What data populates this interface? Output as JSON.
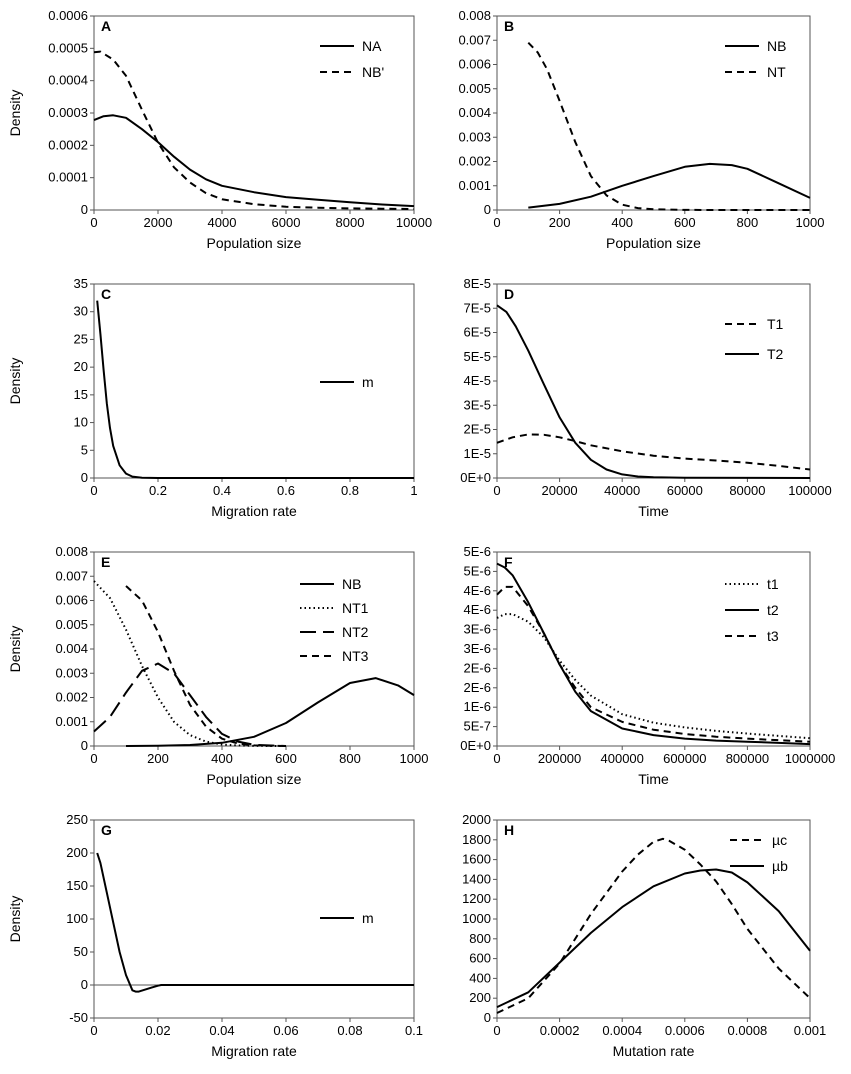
{
  "chart_data": [
    {
      "panel": "A",
      "type": "line",
      "title": "",
      "xlabel": "Population size",
      "ylabel": "Density",
      "xlim": [
        0,
        10000
      ],
      "ylim": [
        0,
        0.0006
      ],
      "xticks": [
        0,
        2000,
        4000,
        6000,
        8000,
        10000
      ],
      "xtick_labels": [
        "0",
        "2000",
        "4000",
        "6000",
        "8000",
        "10000"
      ],
      "yticks": [
        0,
        0.0001,
        0.0002,
        0.0003,
        0.0004,
        0.0005,
        0.0006
      ],
      "ytick_labels": [
        "0",
        "0.0001",
        "0.0002",
        "0.0003",
        "0.0004",
        "0.0005",
        "0.0006"
      ],
      "legend_position": "top-right",
      "series": [
        {
          "name": "NA",
          "style": "solid",
          "x": [
            0,
            300,
            600,
            1000,
            1500,
            2000,
            2500,
            3000,
            3500,
            4000,
            5000,
            6000,
            7000,
            8000,
            9000,
            10000
          ],
          "y": [
            0.000278,
            0.00029,
            0.000293,
            0.000285,
            0.00025,
            0.00021,
            0.000165,
            0.000125,
            9.5e-05,
            7.5e-05,
            5.5e-05,
            4e-05,
            3.2e-05,
            2.4e-05,
            1.7e-05,
            1.2e-05
          ]
        },
        {
          "name": "NB'",
          "style": "dashed",
          "x": [
            0,
            200,
            600,
            1000,
            1500,
            2000,
            2500,
            3000,
            3500,
            4000,
            5000,
            6000,
            7000,
            8000,
            9000,
            10000
          ],
          "y": [
            0.000488,
            0.00049,
            0.000465,
            0.000415,
            0.00031,
            0.000208,
            0.000132,
            8.5e-05,
            5.2e-05,
            3.3e-05,
            1.8e-05,
            1e-05,
            7e-06,
            5e-06,
            4e-06,
            3e-06
          ]
        }
      ]
    },
    {
      "panel": "B",
      "type": "line",
      "title": "",
      "xlabel": "Population size",
      "ylabel": "",
      "xlim": [
        0,
        1000
      ],
      "ylim": [
        0,
        0.008
      ],
      "xticks": [
        0,
        200,
        400,
        600,
        800,
        1000
      ],
      "xtick_labels": [
        "0",
        "200",
        "400",
        "600",
        "800",
        "1000"
      ],
      "yticks": [
        0,
        0.001,
        0.002,
        0.003,
        0.004,
        0.005,
        0.006,
        0.007,
        0.008
      ],
      "ytick_labels": [
        "0",
        "0.001",
        "0.002",
        "0.003",
        "0.004",
        "0.005",
        "0.006",
        "0.007",
        "0.008"
      ],
      "legend_position": "top-right",
      "series": [
        {
          "name": "NB",
          "style": "solid",
          "x": [
            100,
            200,
            300,
            400,
            500,
            600,
            680,
            750,
            800,
            900,
            1000
          ],
          "y": [
            0.0001,
            0.00025,
            0.00055,
            0.001,
            0.0014,
            0.00178,
            0.0019,
            0.00185,
            0.0017,
            0.0011,
            0.0005
          ]
        },
        {
          "name": "NT",
          "style": "dashed",
          "x": [
            100,
            130,
            160,
            200,
            250,
            300,
            350,
            400,
            450,
            500,
            600,
            700,
            800,
            1000
          ],
          "y": [
            0.0069,
            0.0065,
            0.0058,
            0.0045,
            0.0028,
            0.0014,
            0.0006,
            0.00022,
            8e-05,
            3e-05,
            5e-06,
            0,
            0,
            0
          ]
        }
      ]
    },
    {
      "panel": "C",
      "type": "line",
      "title": "",
      "xlabel": "Migration rate",
      "ylabel": "Density",
      "xlim": [
        0,
        1
      ],
      "ylim": [
        0,
        35
      ],
      "xticks": [
        0,
        0.2,
        0.4,
        0.6,
        0.8,
        1
      ],
      "xtick_labels": [
        "0",
        "0.2",
        "0.4",
        "0.6",
        "0.8",
        "1"
      ],
      "yticks": [
        0,
        5,
        10,
        15,
        20,
        25,
        30,
        35
      ],
      "ytick_labels": [
        "0",
        "5",
        "10",
        "15",
        "20",
        "25",
        "30",
        "35"
      ],
      "legend_position": "middle-right",
      "series": [
        {
          "name": "m",
          "style": "solid",
          "x": [
            0.01,
            0.02,
            0.03,
            0.04,
            0.05,
            0.06,
            0.08,
            0.1,
            0.12,
            0.15,
            0.2,
            0.3,
            0.5,
            1
          ],
          "y": [
            32,
            26,
            19.5,
            13.5,
            9,
            5.8,
            2.3,
            0.8,
            0.25,
            0.05,
            0,
            0,
            0,
            0
          ]
        }
      ]
    },
    {
      "panel": "D",
      "type": "line",
      "title": "",
      "xlabel": "Time",
      "ylabel": "",
      "xlim": [
        0,
        100000
      ],
      "ylim": [
        0,
        8e-05
      ],
      "xticks": [
        0,
        20000,
        40000,
        60000,
        80000,
        100000
      ],
      "xtick_labels": [
        "0",
        "20000",
        "40000",
        "60000",
        "80000",
        "100000"
      ],
      "yticks": [
        0,
        1e-05,
        2e-05,
        3e-05,
        4e-05,
        5e-05,
        6e-05,
        7e-05,
        8e-05
      ],
      "ytick_labels": [
        "0E+0",
        "1E-5",
        "2E-5",
        "3E-5",
        "4E-5",
        "5E-5",
        "6E-5",
        "7E-5",
        "8E-5"
      ],
      "legend_position": "top-right",
      "series": [
        {
          "name": "T1",
          "style": "dashed",
          "x": [
            0,
            5000,
            10000,
            15000,
            20000,
            25000,
            30000,
            40000,
            50000,
            60000,
            70000,
            80000,
            90000,
            100000
          ],
          "y": [
            1.45e-05,
            1.68e-05,
            1.8e-05,
            1.78e-05,
            1.68e-05,
            1.52e-05,
            1.35e-05,
            1.1e-05,
            9.2e-06,
            8e-06,
            7.2e-06,
            6.3e-06,
            5e-06,
            3.5e-06
          ]
        },
        {
          "name": "T2",
          "style": "solid",
          "x": [
            0,
            3000,
            6000,
            10000,
            15000,
            20000,
            25000,
            30000,
            35000,
            40000,
            45000,
            50000,
            60000,
            100000
          ],
          "y": [
            7.12e-05,
            6.85e-05,
            6.25e-05,
            5.25e-05,
            3.85e-05,
            2.5e-05,
            1.45e-05,
            7.5e-06,
            3.5e-06,
            1.5e-06,
            6e-07,
            3e-07,
            1e-07,
            0
          ]
        }
      ]
    },
    {
      "panel": "E",
      "type": "line",
      "title": "",
      "xlabel": "Population size",
      "ylabel": "Density",
      "xlim": [
        0,
        1000
      ],
      "ylim": [
        0,
        0.008
      ],
      "xticks": [
        0,
        200,
        400,
        600,
        800,
        1000
      ],
      "xtick_labels": [
        "0",
        "200",
        "400",
        "600",
        "800",
        "1000"
      ],
      "yticks": [
        0,
        0.001,
        0.002,
        0.003,
        0.004,
        0.005,
        0.006,
        0.007,
        0.008
      ],
      "ytick_labels": [
        "0",
        "0.001",
        "0.002",
        "0.003",
        "0.004",
        "0.005",
        "0.006",
        "0.007",
        "0.008"
      ],
      "legend_position": "top-right",
      "series": [
        {
          "name": "NB",
          "style": "solid",
          "x": [
            100,
            200,
            300,
            400,
            500,
            600,
            700,
            800,
            880,
            950,
            1000
          ],
          "y": [
            2e-06,
            1e-05,
            4e-05,
            0.00013,
            0.00038,
            0.00095,
            0.0018,
            0.0026,
            0.0028,
            0.0025,
            0.0021
          ]
        },
        {
          "name": "NT1",
          "style": "dotted",
          "x": [
            0,
            50,
            100,
            150,
            200,
            250,
            300,
            350,
            400,
            450,
            500,
            600
          ],
          "y": [
            0.0068,
            0.0061,
            0.0048,
            0.0033,
            0.002,
            0.001,
            0.00045,
            0.00018,
            6e-05,
            2e-05,
            5e-06,
            0
          ]
        },
        {
          "name": "NT2",
          "style": "longdash",
          "x": [
            0,
            50,
            100,
            150,
            200,
            250,
            300,
            350,
            400,
            450,
            500,
            600
          ],
          "y": [
            0.0006,
            0.0012,
            0.0022,
            0.0031,
            0.0034,
            0.003,
            0.0021,
            0.0012,
            0.0005,
            0.00018,
            5e-05,
            0
          ]
        },
        {
          "name": "NT3",
          "style": "dashed",
          "x": [
            100,
            150,
            200,
            250,
            300,
            350,
            400,
            450,
            500,
            550,
            600
          ],
          "y": [
            0.0066,
            0.006,
            0.0047,
            0.0031,
            0.0017,
            0.0008,
            0.0003,
            0.0001,
            3e-05,
            1e-05,
            0
          ]
        }
      ]
    },
    {
      "panel": "F",
      "type": "line",
      "title": "",
      "xlabel": "Time",
      "ylabel": "",
      "xlim": [
        0,
        1000000
      ],
      "ylim": [
        0,
        5e-06
      ],
      "xticks": [
        0,
        200000,
        400000,
        600000,
        800000,
        1000000
      ],
      "xtick_labels": [
        "0",
        "200000",
        "400000",
        "600000",
        "800000",
        "1000000"
      ],
      "yticks": [
        0,
        5e-07,
        1e-06,
        1.5e-06,
        2e-06,
        2.5e-06,
        3e-06,
        3.5e-06,
        4e-06,
        4.5e-06,
        5e-06
      ],
      "ytick_labels": [
        "0E+0",
        "5E-7",
        "1E-6",
        "2E-6",
        "2E-6",
        "3E-6",
        "3E-6",
        "4E-6",
        "4E-6",
        "5E-6",
        "5E-6"
      ],
      "legend_position": "top-right",
      "series": [
        {
          "name": "t1",
          "style": "dotted",
          "x": [
            0,
            25000,
            50000,
            100000,
            150000,
            200000,
            250000,
            300000,
            400000,
            500000,
            600000,
            700000,
            800000,
            900000,
            1000000
          ],
          "y": [
            3.3e-06,
            3.4e-06,
            3.4e-06,
            3.2e-06,
            2.8e-06,
            2.2e-06,
            1.7e-06,
            1.3e-06,
            8.2e-07,
            6e-07,
            4.8e-07,
            3.9e-07,
            3.2e-07,
            2.6e-07,
            2e-07
          ]
        },
        {
          "name": "t2",
          "style": "solid",
          "x": [
            0,
            25000,
            50000,
            100000,
            150000,
            200000,
            250000,
            300000,
            400000,
            500000,
            600000,
            700000,
            800000,
            900000,
            1000000
          ],
          "y": [
            4.7e-06,
            4.6e-06,
            4.4e-06,
            3.7e-06,
            2.9e-06,
            2.1e-06,
            1.4e-06,
            9e-07,
            4.5e-07,
            2.8e-07,
            1.9e-07,
            1.4e-07,
            1.1e-07,
            8e-08,
            5e-08
          ]
        },
        {
          "name": "t3",
          "style": "dashed",
          "x": [
            0,
            25000,
            50000,
            100000,
            150000,
            200000,
            250000,
            300000,
            400000,
            500000,
            600000,
            700000,
            800000,
            900000,
            1000000
          ],
          "y": [
            3.9e-06,
            4.1e-06,
            4.1e-06,
            3.6e-06,
            2.9e-06,
            2.1e-06,
            1.5e-06,
            1e-06,
            6.2e-07,
            4.2e-07,
            3.1e-07,
            2.4e-07,
            1.9e-07,
            1.5e-07,
            1.1e-07
          ]
        }
      ]
    },
    {
      "panel": "G",
      "type": "line",
      "title": "",
      "xlabel": "Migration rate",
      "ylabel": "Density",
      "xlim": [
        0,
        0.1
      ],
      "ylim": [
        -50,
        250
      ],
      "xticks": [
        0,
        0.02,
        0.04,
        0.06,
        0.08,
        0.1
      ],
      "xtick_labels": [
        "0",
        "0.02",
        "0.04",
        "0.06",
        "0.08",
        "0.1"
      ],
      "yticks": [
        -50,
        0,
        50,
        100,
        150,
        200,
        250
      ],
      "ytick_labels": [
        "-50",
        "0",
        "50",
        "100",
        "150",
        "200",
        "250"
      ],
      "legend_position": "middle-right",
      "series": [
        {
          "name": "m",
          "style": "solid",
          "x": [
            0.001,
            0.002,
            0.004,
            0.006,
            0.008,
            0.01,
            0.012,
            0.013,
            0.014,
            0.016,
            0.018,
            0.02,
            0.021,
            0.1
          ],
          "y": [
            200,
            185,
            140,
            95,
            50,
            15,
            -8,
            -10,
            -10,
            -7,
            -4,
            -1,
            0,
            0
          ]
        }
      ]
    },
    {
      "panel": "H",
      "type": "line",
      "title": "",
      "xlabel": "Mutation rate",
      "ylabel": "",
      "xlim": [
        0,
        0.001
      ],
      "ylim": [
        0,
        2000
      ],
      "xticks": [
        0,
        0.0002,
        0.0004,
        0.0006,
        0.0008,
        0.001
      ],
      "xtick_labels": [
        "0",
        "0.0002",
        "0.0004",
        "0.0006",
        "0.0008",
        "0.001"
      ],
      "yticks": [
        0,
        200,
        400,
        600,
        800,
        1000,
        1200,
        1400,
        1600,
        1800,
        2000
      ],
      "ytick_labels": [
        "0",
        "200",
        "400",
        "600",
        "800",
        "1000",
        "1200",
        "1400",
        "1600",
        "1800",
        "2000"
      ],
      "legend_position": "top-right",
      "series": [
        {
          "name": "µc",
          "style": "dashed",
          "x": [
            0,
            0.0001,
            0.0002,
            0.0003,
            0.0004,
            0.00045,
            0.0005,
            0.00053,
            0.00055,
            0.0006,
            0.00065,
            0.0007,
            0.00075,
            0.0008,
            0.0009,
            0.001
          ],
          "y": [
            50,
            200,
            550,
            1050,
            1480,
            1650,
            1780,
            1810,
            1790,
            1700,
            1550,
            1380,
            1150,
            900,
            500,
            200
          ]
        },
        {
          "name": "µb",
          "style": "solid",
          "x": [
            0,
            0.0001,
            0.0002,
            0.0003,
            0.0004,
            0.0005,
            0.0006,
            0.00065,
            0.0007,
            0.00075,
            0.0008,
            0.0009,
            0.001
          ],
          "y": [
            110,
            260,
            560,
            860,
            1120,
            1330,
            1460,
            1490,
            1500,
            1470,
            1370,
            1080,
            680
          ]
        }
      ]
    }
  ]
}
